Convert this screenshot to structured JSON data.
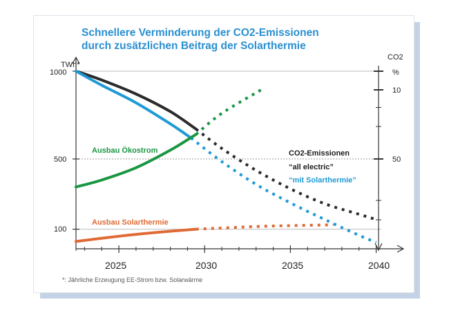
{
  "chart_data": {
    "type": "line",
    "title": "Schnellere Verminderung der CO2-Emissionen",
    "subtitle": "durch zusätzlichen Beitrag der Solarthermie",
    "ylabel_left": "TWh*",
    "ylabel_right_top": "CO2",
    "ylabel_right_unit": "%",
    "x_ticks": [
      "2025",
      "2030",
      "2035",
      "2040"
    ],
    "y_ticks_left": [
      "1000",
      "500",
      "100"
    ],
    "y_ticks_right": [
      "10",
      "50"
    ],
    "xlim": [
      2022.5,
      2040.3
    ],
    "ylim": [
      0,
      1000
    ],
    "annotations": {
      "oekostrom": "Ausbau Ökostrom",
      "solarthermie": "Ausbau Solarthermie",
      "co2_head": "CO2-Emissionen",
      "all_electric": "“all electric”",
      "mit_solar": "“mit Solarthermie”"
    },
    "footnote": "*: Jährliche Erzeugung EE-Strom bzw. Solarwärme",
    "colors": {
      "title": "#2a8fd0",
      "all_electric": "#2b2b2b",
      "mit_solarthermie": "#1f9ad6",
      "oekostrom": "#1a9642",
      "solarthermie": "#e06a35"
    },
    "series": [
      {
        "name": "“all electric”",
        "color": "#2b2b2b",
        "style": "solid",
        "x": [
          2022.5,
          2024,
          2026,
          2028,
          2029.5
        ],
        "values": [
          1000,
          950,
          870,
          770,
          670
        ]
      },
      {
        "name": "“all electric”",
        "color": "#2b2b2b",
        "style": "dotted",
        "x": [
          2029.5,
          2031,
          2033,
          2035,
          2037,
          2039,
          2040
        ],
        "values": [
          670,
          560,
          435,
          330,
          245,
          185,
          155
        ]
      },
      {
        "name": "“mit Solarthermie”",
        "color": "#1f9ad6",
        "style": "solid",
        "x": [
          2022.5,
          2024,
          2026,
          2028,
          2029.2
        ],
        "values": [
          1000,
          920,
          820,
          700,
          620
        ]
      },
      {
        "name": "“mit Solarthermie”",
        "color": "#1f9ad6",
        "style": "dotted",
        "x": [
          2029.2,
          2031,
          2033,
          2035,
          2037,
          2039,
          2040
        ],
        "values": [
          620,
          485,
          355,
          250,
          155,
          65,
          25
        ]
      },
      {
        "name": "Ausbau Ökostrom",
        "color": "#1a9642",
        "style": "solid",
        "x": [
          2022.5,
          2024,
          2026,
          2028,
          2029.5
        ],
        "values": [
          340,
          380,
          450,
          550,
          640
        ]
      },
      {
        "name": "Ausbau Ökostrom",
        "color": "#1a9642",
        "style": "dotted",
        "x": [
          2029.5,
          2031,
          2033.5
        ],
        "values": [
          640,
          760,
          905
        ]
      },
      {
        "name": "Ausbau Solarthermie",
        "color": "#e06a35",
        "style": "solid",
        "x": [
          2022.5,
          2025,
          2027,
          2029.5
        ],
        "values": [
          30,
          60,
          80,
          100
        ]
      },
      {
        "name": "Ausbau Solarthermie",
        "color": "#e06a35",
        "style": "dotted",
        "x": [
          2029.5,
          2033,
          2035,
          2037.5
        ],
        "values": [
          100,
          115,
          120,
          125
        ]
      }
    ]
  }
}
